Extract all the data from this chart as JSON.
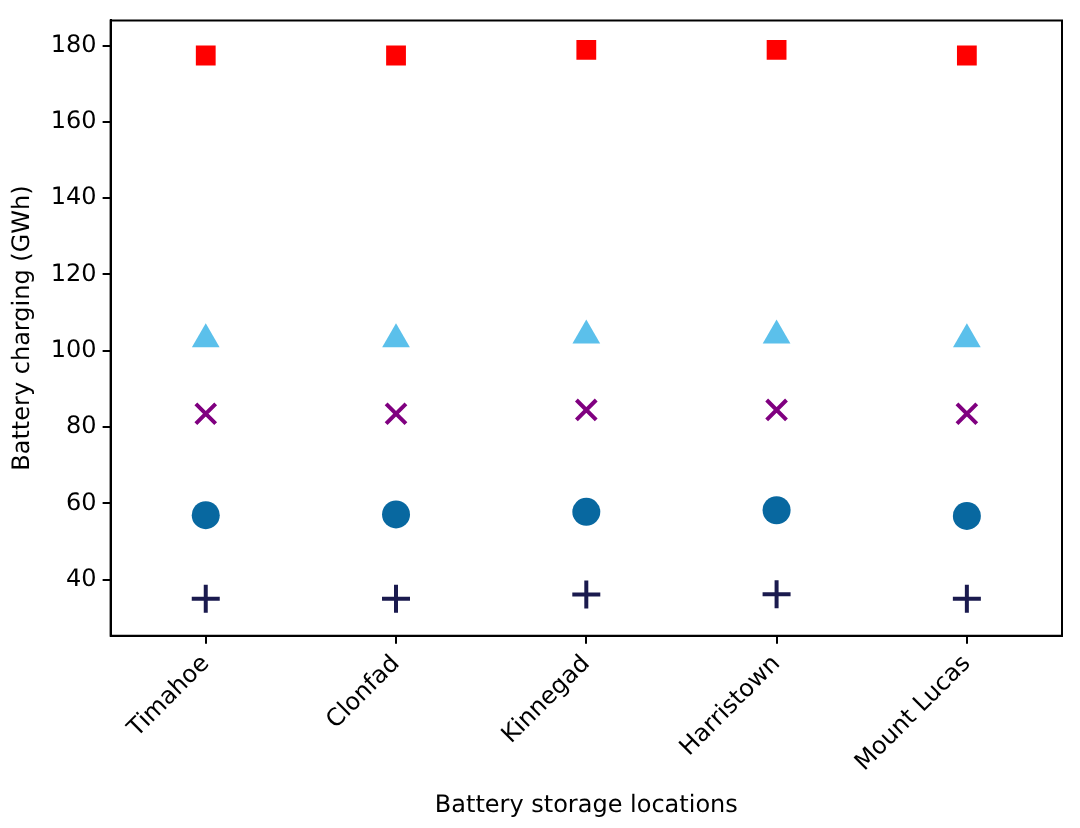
{
  "chart_data": {
    "type": "scatter",
    "xlabel": "Battery storage locations",
    "ylabel": "Battery charging (GWh)",
    "categories": [
      "Timahoe",
      "Clonfad",
      "Kinnegad",
      "Harristown",
      "Mount Lucas"
    ],
    "series": [
      {
        "color": "#ff0000",
        "marker": "square",
        "values": [
          177.4,
          177.4,
          178.9,
          178.9,
          177.4
        ]
      },
      {
        "color": "#5bc0eb",
        "marker": "triangle",
        "values": [
          103,
          103,
          104,
          104,
          103
        ]
      },
      {
        "color": "#800080",
        "marker": "cross",
        "values": [
          83.5,
          83.5,
          84.5,
          84.5,
          83.5
        ]
      },
      {
        "color": "#0868a0",
        "marker": "circle",
        "values": [
          56.9,
          57.1,
          57.8,
          58.2,
          56.7
        ]
      },
      {
        "color": "#1a1a4e",
        "marker": "plus",
        "values": [
          35.0,
          35.0,
          36.1,
          36.2,
          35.0
        ]
      }
    ],
    "ylim": [
      25.3,
      186.6
    ],
    "yticks": [
      40,
      60,
      80,
      100,
      120,
      140,
      160,
      180
    ],
    "grid": false,
    "legend": false
  }
}
